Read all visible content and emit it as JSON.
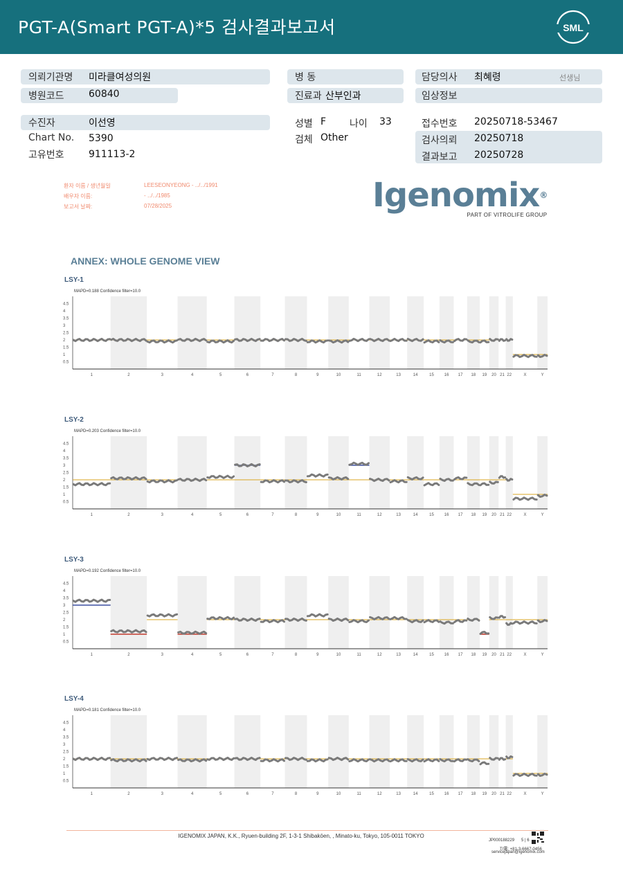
{
  "header": {
    "title": "PGT-A(Smart  PGT-A)*5 검사결과보고서",
    "logo_text": "SML",
    "bg_color": "#16707d"
  },
  "info": {
    "institution_label": "의뢰기관명",
    "institution_value": "미라클여성의원",
    "hospital_code_label": "병원코드",
    "hospital_code_value": "60840",
    "patient_label": "수진자",
    "patient_value": "이선영",
    "chart_no_label": "Chart No.",
    "chart_no_value": "5390",
    "unique_no_label": "고유번호",
    "unique_no_value": "911113-2",
    "ward_label": "병  동",
    "ward_value": "",
    "dept_label": "진료과",
    "dept_value": "산부인과",
    "sex_label": "성별",
    "sex_value": "F",
    "age_label": "나이",
    "age_value": "33",
    "specimen_label": "검체",
    "specimen_value": "Other",
    "doctor_label": "담당의사",
    "doctor_value": "최혜령",
    "doctor_suffix": "선생님",
    "clinical_label": "임상정보",
    "clinical_value": "",
    "receipt_label": "접수번호",
    "receipt_value": "20250718-53467",
    "request_label": "검사의뢰",
    "request_value": "20250718",
    "report_label": "결과보고",
    "report_value": "20250728"
  },
  "patient_block": {
    "name_label": "환자 이름 / 생년월일",
    "name_value": "LEESEONYEONG - ‥/‥/1991",
    "partner_label": "배우자 이름:",
    "partner_value": "- ‥/‥/1985",
    "report_date_label": "보고서 날짜:",
    "report_date_value": "07/28/2025"
  },
  "igenomix": {
    "word": "Igenomix",
    "reg": "®",
    "sub": "PART OF VITROLIFE GROUP"
  },
  "annex_title": "ANNEX: WHOLE GENOME VIEW",
  "chart_data": [
    {
      "type": "line",
      "title": "LSY-1",
      "subtitle": "MAPD=0.188 Confidence filter=10.0",
      "ylim": [
        0,
        5
      ],
      "yticks": [
        "4.5",
        "4",
        "3.5",
        "3",
        "2.5",
        "2",
        "1.5",
        "1",
        "0.5"
      ],
      "x_categories": [
        "1",
        "2",
        "3",
        "4",
        "5",
        "6",
        "7",
        "8",
        "9",
        "10",
        "11",
        "12",
        "13",
        "14",
        "15",
        "16",
        "17",
        "18",
        "19",
        "20",
        "21",
        "22",
        "X",
        "Y"
      ],
      "series": [
        {
          "values": [
            2.0,
            2.0,
            1.9,
            2.0,
            1.9,
            2.0,
            2.0,
            2.0,
            1.9,
            1.9,
            2.0,
            2.0,
            2.0,
            2.0,
            1.9,
            1.9,
            2.0,
            1.9,
            1.9,
            2.0,
            2.0,
            2.0,
            0.9,
            0.9
          ]
        }
      ],
      "baseline": [
        2,
        2,
        2,
        2,
        2,
        2,
        2,
        2,
        2,
        2,
        2,
        2,
        2,
        2,
        2,
        2,
        2,
        2,
        2,
        2,
        2,
        2,
        1,
        1
      ],
      "highlights": []
    },
    {
      "type": "line",
      "title": "LSY-2",
      "subtitle": "MAPD=0.203 Confidence filter=10.0",
      "ylim": [
        0,
        5
      ],
      "yticks": [
        "4.5",
        "4",
        "3.5",
        "3",
        "2.5",
        "2",
        "1.5",
        "1",
        "0.5"
      ],
      "x_categories": [
        "1",
        "2",
        "3",
        "4",
        "5",
        "6",
        "7",
        "8",
        "9",
        "10",
        "11",
        "12",
        "13",
        "14",
        "15",
        "16",
        "17",
        "18",
        "19",
        "20",
        "21",
        "22",
        "X",
        "Y"
      ],
      "series": [
        {
          "values": [
            1.7,
            2.1,
            1.9,
            2.0,
            2.2,
            3.0,
            1.9,
            1.9,
            2.3,
            2.1,
            3.1,
            2.0,
            1.9,
            2.1,
            1.7,
            2.0,
            2.1,
            1.7,
            1.7,
            1.8,
            2.2,
            2.0,
            0.7,
            0.9
          ]
        }
      ],
      "baseline": [
        2,
        2,
        2,
        2,
        2,
        2,
        2,
        2,
        2,
        2,
        2,
        2,
        2,
        2,
        2,
        2,
        2,
        2,
        2,
        2,
        2,
        2,
        1,
        1
      ],
      "highlights": [
        {
          "chrom": "6",
          "value": 3,
          "color": "#3b4fa0"
        },
        {
          "chrom": "11",
          "value": 3,
          "color": "#3b4fa0"
        }
      ]
    },
    {
      "type": "line",
      "title": "LSY-3",
      "subtitle": "MAPD=0.192 Confidence filter=10.0",
      "ylim": [
        0,
        5
      ],
      "yticks": [
        "4.5",
        "4",
        "3.5",
        "3",
        "2.5",
        "2",
        "1.5",
        "1",
        "0.5"
      ],
      "x_categories": [
        "1",
        "2",
        "3",
        "4",
        "5",
        "6",
        "7",
        "8",
        "9",
        "10",
        "11",
        "12",
        "13",
        "14",
        "15",
        "16",
        "17",
        "18",
        "19",
        "20",
        "21",
        "22",
        "X",
        "Y"
      ],
      "series": [
        {
          "values": [
            3.3,
            1.2,
            2.3,
            1.1,
            2.1,
            2.0,
            1.9,
            2.0,
            2.3,
            2.0,
            1.9,
            2.1,
            2.1,
            1.9,
            1.9,
            1.8,
            1.9,
            2.0,
            1.1,
            2.1,
            2.2,
            1.7,
            1.8,
            1.9
          ]
        }
      ],
      "baseline": [
        3,
        1,
        2,
        1,
        2,
        2,
        2,
        2,
        2,
        2,
        2,
        2,
        2,
        2,
        2,
        2,
        2,
        2,
        1,
        2,
        2,
        2,
        2,
        2
      ],
      "highlights": [
        {
          "chrom": "1",
          "value": 3,
          "color": "#3b4fa0"
        },
        {
          "chrom": "2",
          "value": 1,
          "color": "#c0392b"
        },
        {
          "chrom": "4",
          "value": 1,
          "color": "#c0392b"
        },
        {
          "chrom": "19",
          "value": 1,
          "color": "#c0392b"
        }
      ]
    },
    {
      "type": "line",
      "title": "LSY-4",
      "subtitle": "MAPD=0.181 Confidence filter=10.0",
      "ylim": [
        0,
        5
      ],
      "yticks": [
        "4.5",
        "4",
        "3.5",
        "3",
        "2.5",
        "2",
        "1.5",
        "1",
        "0.5"
      ],
      "x_categories": [
        "1",
        "2",
        "3",
        "4",
        "5",
        "6",
        "7",
        "8",
        "9",
        "10",
        "11",
        "12",
        "13",
        "14",
        "15",
        "16",
        "17",
        "18",
        "19",
        "20",
        "21",
        "22",
        "X",
        "Y"
      ],
      "series": [
        {
          "values": [
            2.0,
            1.9,
            2.0,
            1.9,
            2.0,
            2.0,
            1.9,
            2.0,
            1.9,
            2.0,
            1.9,
            1.9,
            1.9,
            1.9,
            1.9,
            1.9,
            1.9,
            1.9,
            1.7,
            2.0,
            2.0,
            2.1,
            0.9,
            0.9
          ]
        }
      ],
      "baseline": [
        2,
        2,
        2,
        2,
        2,
        2,
        2,
        2,
        2,
        2,
        2,
        2,
        2,
        2,
        2,
        2,
        2,
        2,
        2,
        2,
        2,
        2,
        1,
        1
      ],
      "highlights": []
    }
  ],
  "footer": {
    "address": "IGENOMIX JAPAN, K.K., Ryuen-building 2F, 1-3-1 Shibakōen, , Minato-ku, Tokyo, 105-0011 TOKYO",
    "doc_code": "JP000188229",
    "page": "5 | 6",
    "tel": "T/電: +81-3-6667-0456",
    "email": "servicejapan@igenomix.com"
  }
}
